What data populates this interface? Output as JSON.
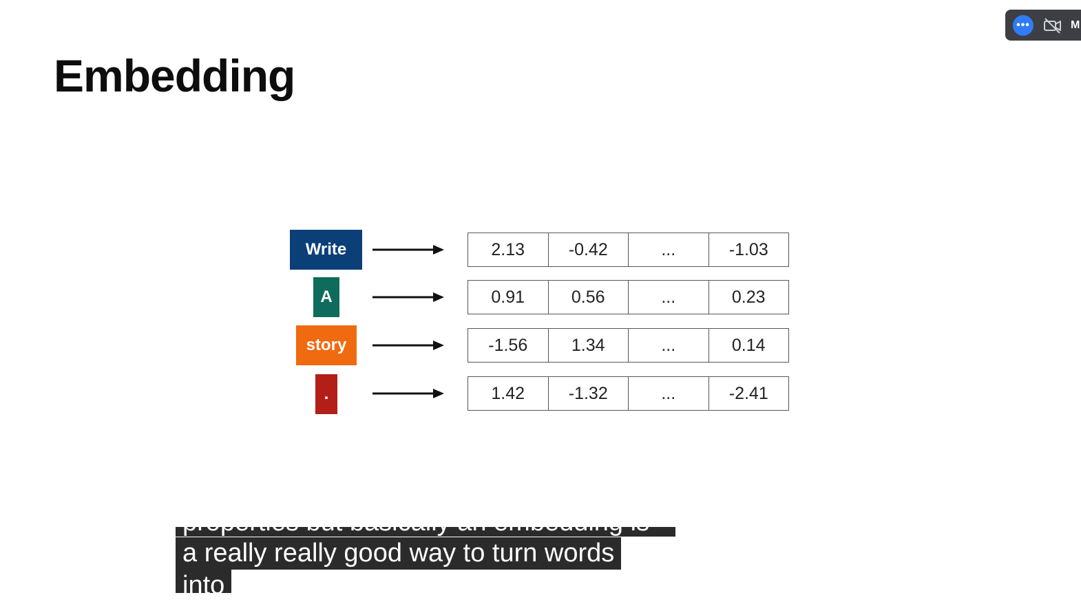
{
  "slide": {
    "title": "Embedding"
  },
  "tokens": [
    {
      "label": "Write",
      "color": "#0b3f78"
    },
    {
      "label": "A",
      "color": "#0f6c5c"
    },
    {
      "label": "story",
      "color": "#f06a10"
    },
    {
      "label": ".",
      "color": "#b31e18"
    }
  ],
  "vectors": [
    [
      "2.13",
      "-0.42",
      "...",
      "-1.03"
    ],
    [
      "0.91",
      "0.56",
      "...",
      "0.23"
    ],
    [
      "-1.56",
      "1.34",
      "...",
      "0.14"
    ],
    [
      "1.42",
      "-1.32",
      "...",
      "-2.41"
    ]
  ],
  "meeting_controls": {
    "more_icon": "more-horizontal-icon",
    "more_glyph": "•••",
    "camera_icon": "video-off-icon",
    "trailing_label": "M"
  },
  "captions": {
    "line_partial": "properties but basically an embedding is",
    "line_main": "a really really good way to turn words",
    "line_next": "into"
  }
}
